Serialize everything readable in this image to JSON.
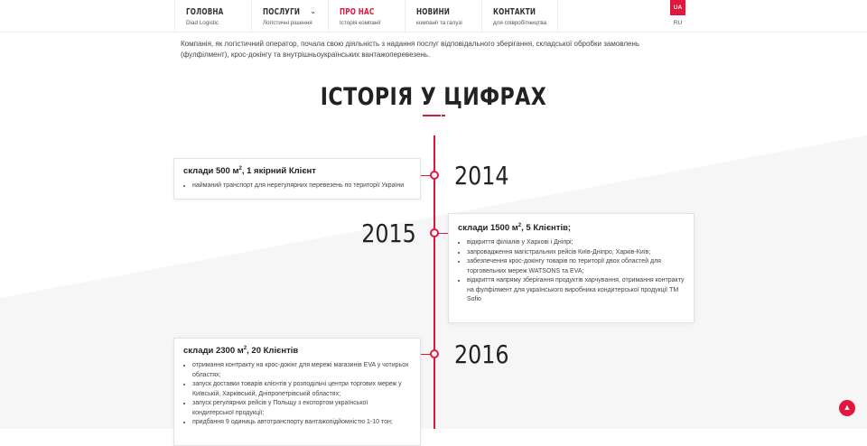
{
  "nav": {
    "items": [
      {
        "title": "ГОЛОВНА",
        "subtitle": "Diad Logistic"
      },
      {
        "title": "ПОСЛУГИ",
        "subtitle": "Логістичні рішення"
      },
      {
        "title": "ПРО НАС",
        "subtitle": "Історія компанії",
        "active": true
      },
      {
        "title": "НОВИНИ",
        "subtitle": "компанії та галузі"
      },
      {
        "title": "КОНТАКТИ",
        "subtitle": "для співробітництва"
      }
    ],
    "lang_active": "UA",
    "lang_other": "RU"
  },
  "intro": "Компанія, як логістичний оператор, почала свою діяльність з надання послуг відповідального зберігання, складської обробки замовлень (фулфілмент), крос-докінгу та внутрішньоукраїнських вантажоперевезень.",
  "section_title": "ІСТОРІЯ У ЦИФРАХ",
  "timeline": [
    {
      "year": "2014",
      "head_a": "склади 500 м",
      "head_b": ", 1 якірний Клієнт",
      "items": [
        "найманий транспорт для нерегулярних перевезень по території України"
      ]
    },
    {
      "year": "2015",
      "head_a": "склади 1500 м",
      "head_b": ", 5 Клієнтів;",
      "items": [
        "відкриття філіалів у Харкові і Дніпрі;",
        "запровадження магістральних рейсів Київ-Дніпро, Харків-Київ;",
        "забезпечення крос-докінгу товарів по території двох областей для торговельних мереж WATSONS та EVA;",
        "відкриття напряму зберігання продуктів харчування, отримання контракту на фулфілмент для українського виробника кондитерської продукції ТМ Sofio"
      ]
    },
    {
      "year": "2016",
      "head_a": "склади 2300 м",
      "head_b": ", 20 Клієнтів",
      "items": [
        "отримання контракту на крос-докінг для мережі магазинів EVA у чотирьох областях;",
        "запуск доставки товарів клієнтів у розподільчі центри торгових мереж у Київській, Харківській, Дніпропетрівській областях;",
        "запуск регулярних рейсів у Польщу з експортом української кондитерської продукції;",
        "придбання 9 одиниць автотранспорту вантажопідйомністю 1-10 тон;"
      ]
    }
  ],
  "sup": "2",
  "accent": "#e3173e"
}
